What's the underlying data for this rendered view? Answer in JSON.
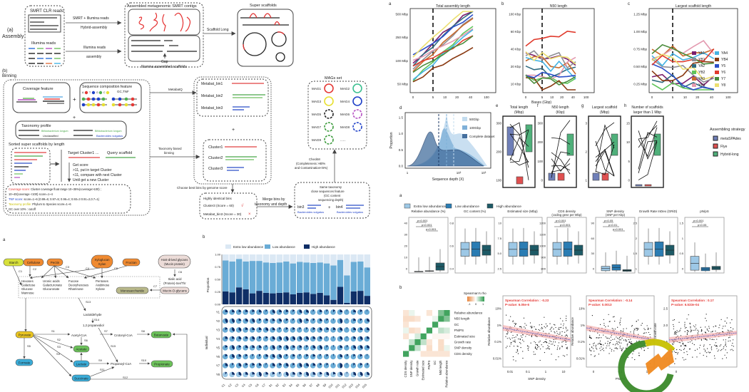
{
  "panel_assembly": {
    "label_a": "(a)",
    "label_assembly": "Assembly",
    "label_b": "(b)",
    "label_binning": "Binning",
    "smrt_box_title": "SMRT CLR reads",
    "illumina_box_title": "Illumina reads",
    "arrow_hybrid_top": "SMRT + Illumina reads",
    "arrow_hybrid_bottom": "Hybrid-assembly",
    "arrow_illumina_top": "Illumina  reads",
    "arrow_illumina_bottom": "assembly",
    "contigs_title": "Assembled metagenomic SMRT contigs",
    "gap_label": "Gap",
    "scaffolds_title": "Illumina assembled scaffolds",
    "scaffold_long": "Scaffold Long",
    "super_scaffolds": "Super scaffolds"
  },
  "panel_binning": {
    "coverage_feature": "Coverage feature",
    "sequence_feature": "Sequence composition feature",
    "gc_tnf": "GC,TNF",
    "plus": "+",
    "taxonomy_profile": "Taxonomy profile",
    "tax_items": [
      "Bifidobacterium longum",
      "Unclassified",
      "Bifidobacterium longum",
      "Bacteroides vulgatus"
    ],
    "sorted_title": "Sorted super scaffolds by length",
    "target_cluster": "Target Cluster1 ...",
    "query_scaffold": "Query scaffold",
    "steps": [
      "Get score",
      ">11, put in target Cluster",
      "<11, compare with next Cluster",
      "Until get a new Cluster"
    ],
    "score_lines": [
      {
        "key": "Coverage score:",
        "text": " Cluster coverage float range 10~35%(coverage>100) ;",
        "color": "#e53935"
      },
      {
        "key": "",
        "text": "10~40(coverage <100) score=1~4",
        "color": "#222"
      },
      {
        "key": "TNF score:",
        "text": "  score=1~6   (0.99=6; 0.97=5; 0.96=4; 0.93=3 0.91=2,0.7=1)",
        "color": "#1e40c8"
      },
      {
        "key": "Taxonomy profile:",
        "text": " Phylum to Species score=1~6",
        "color": "#c8c000"
      },
      {
        "key": "",
        "text": "GC over 10% : cutoff",
        "color": "#222"
      }
    ],
    "metabat_label": "MetabatQ",
    "taxonomy_binning": [
      "Taxonomy based",
      "binning"
    ],
    "metabat_bins": [
      "Metabat_bin1",
      "Metabat_bin2",
      "Metabat_bin3"
    ],
    "clusters": [
      "Cluster1",
      "Cluster2",
      "Cluster3"
    ],
    "choose_best": "Choose best bins by genome score",
    "highly_identical": "Highly identical bins",
    "cluster3_score": "Cluster3 (Score = 60)",
    "metabat3_score": "Metabat_bin3 (Score = 30)",
    "merge_label": [
      "Merge bins by",
      "taxonomy and depth"
    ],
    "same_tax": [
      "Same taxonomy",
      "close sequences feature",
      "(GC content",
      "sequencing depth)"
    ],
    "bin3": "bin3",
    "bin4": "bin4",
    "bacteroides": "Bacteroides vulgatus",
    "checkm": [
      "CheckM",
      "(Completeness >80%",
      "and Contamination<5%)"
    ],
    "mags_title": "MAGs set",
    "mags": [
      "MAG1",
      "MAG2",
      "MAG3",
      "MAG4",
      "MAG5",
      "MAG6",
      "MAG7",
      "MAG8",
      "MAG9",
      "......"
    ]
  },
  "panel_pathway": {
    "label": "a",
    "nodes": {
      "starch": "Starch",
      "cellulose": "Cellulose",
      "pectin": "Pectin",
      "xylo1": "Xyloglucan",
      "xylo2": "Xylan",
      "fructan": "Fructan",
      "host1": "Host-drived glycans",
      "host2": "(Mucin protein)",
      "sialic1": "Sialic acid",
      "sialic2": "(Protein)-Ser/Thr",
      "mucin": "Mucin-O-glycans",
      "mono": "Monosaccharide",
      "hexoses": [
        "Hexoses",
        "Galactose",
        "Glucose",
        "Mannose"
      ],
      "uronic": [
        "Uronic acids",
        "Galacturonate",
        "Glucuronate"
      ],
      "fucose": [
        "Fucose",
        "Deoxyhexoses",
        "Rhamnose"
      ],
      "pentoses": [
        "Pentoses",
        "Arabinose",
        "Xylose"
      ],
      "lactaldehyde": "Lactaldehyde",
      "propanediol": "1,2 propanediol",
      "pyruvate": "Pyruvate",
      "acetyl": "Acetyl-CoA",
      "crotonyl": "Crotonyl-CoA",
      "butanoate": "Butanoate",
      "acetate": "Acetate",
      "formate": "Formate",
      "lactate": "Lactate",
      "propanoyl": "Propanoyl-CoA",
      "propionate": "Propionate",
      "succinate": "Succinate"
    },
    "edges": [
      "C1",
      "C2",
      "C3",
      "C4",
      "C5",
      "C6",
      "C7",
      "S1",
      "S2",
      "S3",
      "S4",
      "S5",
      "S6",
      "S7",
      "S8",
      "S9",
      "S10",
      "S11",
      "S12",
      "S13",
      "S14",
      "S15"
    ]
  },
  "chart_data": [
    {
      "id": "b-abundance",
      "type": "bar",
      "title": "",
      "ylabel": "Proportion",
      "xlabel": "",
      "ylim": [
        0,
        1
      ],
      "yticks": [
        "0.00",
        "0.25",
        "0.50",
        "0.75",
        "1.00"
      ],
      "legend": [
        "Extra low abundance",
        "Low abundance",
        "High abundance"
      ],
      "legend_position": "top",
      "categories": [
        "C1",
        "C2",
        "C3",
        "C4",
        "C5",
        "C6",
        "C7",
        "S1",
        "S2",
        "S3",
        "S4",
        "S5",
        "S6",
        "S7",
        "S8",
        "S9",
        "S10",
        "S11",
        "S12",
        "S13",
        "S14",
        "S15"
      ],
      "series": [
        {
          "name": "High abundance",
          "values": [
            0.26,
            0.24,
            0.34,
            0.3,
            0.22,
            0.27,
            0.23,
            0.22,
            0.23,
            0.24,
            0.2,
            0.23,
            0.24,
            0.21,
            0.23,
            0.18,
            0.09,
            0.35,
            0.03,
            0.26,
            0.27,
            0.17
          ]
        },
        {
          "name": "Low abundance",
          "values": [
            0.62,
            0.62,
            0.57,
            0.56,
            0.65,
            0.6,
            0.61,
            0.61,
            0.61,
            0.62,
            0.62,
            0.62,
            0.6,
            0.62,
            0.61,
            0.64,
            0.69,
            0.54,
            0.55,
            0.59,
            0.59,
            0.57
          ]
        },
        {
          "name": "Extra low abundance",
          "values": [
            0.12,
            0.14,
            0.09,
            0.14,
            0.13,
            0.13,
            0.16,
            0.17,
            0.16,
            0.14,
            0.18,
            0.15,
            0.16,
            0.17,
            0.16,
            0.18,
            0.22,
            0.11,
            0.42,
            0.15,
            0.14,
            0.26
          ]
        }
      ],
      "pie_rows": [
        "Y1",
        "Y2",
        "Y3",
        "Y4",
        "Y5",
        "Y6",
        "Y7",
        "Y8"
      ],
      "pie_ylabel": "Individual"
    },
    {
      "id": "a-total-assembly",
      "type": "line",
      "title": "Total assembly length",
      "xlabel": "",
      "ylabel": "",
      "xticks": [
        "0",
        "5",
        "10",
        "20",
        "40",
        "100"
      ],
      "yticks": [
        "50 Mbp",
        "100 Mbp",
        "250 Mbp",
        "500 Mbp"
      ],
      "xlim": [
        0,
        120
      ],
      "vline": 5
    },
    {
      "id": "b-n50",
      "type": "line",
      "title": "N50 length",
      "xlabel": "Bases (Gbp)",
      "ylabel": "",
      "xticks": [
        "0",
        "5",
        "10",
        "20",
        "40",
        "100"
      ],
      "yticks": [
        "10 Kbp",
        "20 Kbp",
        "40 Kbp",
        "60 Kbp",
        "100 Kbp"
      ],
      "vline": 5
    },
    {
      "id": "c-largest-scaffold",
      "type": "line",
      "title": "Largest scaffold length",
      "xticks": [
        "0",
        "5",
        "10",
        "20",
        "40",
        "100"
      ],
      "yticks": [
        "0.25 Mbp",
        "0.50 Mbp",
        "0.75 Mbp",
        "1.00 Mbp",
        "1.25 Mbp"
      ],
      "vline": 5,
      "legend": [
        {
          "name": "YA1",
          "color": "#7b1f6e"
        },
        {
          "name": "YB1",
          "color": "#8e8e96"
        },
        {
          "name": "YA2",
          "color": "#2f6b80"
        },
        {
          "name": "YB2",
          "color": "#5fc45a"
        },
        {
          "name": "YA3",
          "color": "#c86a2c"
        },
        {
          "name": "YB3",
          "color": "#e39ab0"
        },
        {
          "name": "YA4",
          "color": "#46b3e3"
        },
        {
          "name": "YB4",
          "color": "#8a3a12"
        },
        {
          "name": "Y5",
          "color": "#2c4fc8"
        },
        {
          "name": "Y6",
          "color": "#e03a2c"
        },
        {
          "name": "Y7",
          "color": "#4a8c3c"
        },
        {
          "name": "Y8",
          "color": "#ecdf70"
        }
      ]
    },
    {
      "id": "d-depth",
      "type": "area",
      "title": "",
      "xlabel": "Sequence depth (X)",
      "ylabel": "Proportion",
      "xticks": [
        "1",
        "10²",
        "10³"
      ],
      "yticks": [
        "0.0",
        "0.5",
        "1.0",
        "1.5"
      ],
      "ylim": [
        0,
        1.5
      ],
      "legend": [
        "50Gbp",
        "100Gbp",
        "Complete dataset"
      ]
    },
    {
      "id": "e-h-strategy",
      "type": "box",
      "panels": [
        {
          "letter": "e",
          "title": [
            "Total length",
            "(Mbp)"
          ],
          "yticks": [
            "100",
            "200",
            "300"
          ]
        },
        {
          "letter": "f",
          "title": [
            "N50 length",
            "(Kbp)"
          ],
          "yticks": [
            "0",
            "100",
            "200",
            "300"
          ]
        },
        {
          "letter": "g",
          "title": [
            "Largest scaffold",
            "(Mbp)"
          ],
          "yticks": [
            "1",
            "2",
            "3"
          ]
        },
        {
          "letter": "h",
          "title": [
            "Number of scaffolds",
            "larger than 1 Mbp"
          ],
          "yticks": [
            "0",
            "5",
            "10",
            "15"
          ]
        }
      ],
      "legend_title": "Assembling strategy",
      "legend": [
        {
          "name": "metaSPAdes",
          "color": "#6f7fb8"
        },
        {
          "name": "Flye",
          "color": "#e05050"
        },
        {
          "name": "Hybrid-long",
          "color": "#4fb07a"
        }
      ]
    },
    {
      "id": "a-features",
      "type": "box",
      "legend": [
        "Extra low abundance",
        "Low abundance",
        "High abundance"
      ],
      "panels": [
        {
          "title": [
            "Relative abundance (%)"
          ],
          "yticks": [
            "0",
            "10",
            "20",
            "30",
            "40"
          ],
          "pvals": [
            "p<0.001",
            "p<0.001",
            "p<0.001"
          ]
        },
        {
          "title": [
            "GC content (%)"
          ],
          "yticks": [
            "0.4",
            "0.6",
            "0.8"
          ],
          "pvals": []
        },
        {
          "title": [
            "Estimated size (Mbp)"
          ],
          "yticks": [
            "2.5",
            "5.0",
            "7.5",
            "10"
          ],
          "pvals": []
        },
        {
          "title": [
            "CDS density",
            "(coding gene per Mbp)"
          ],
          "yticks": [
            "800",
            "900",
            "1000",
            "1100",
            "1200"
          ],
          "pvals": [
            "p<0.001",
            "p<0.001"
          ]
        },
        {
          "title": [
            "SNP density",
            "(SNP per Kbp)"
          ],
          "yticks": [
            "0",
            "30",
            "60",
            "90"
          ],
          "pvals": [
            "p<0.05",
            "p<0.01",
            "p<0.001"
          ]
        },
        {
          "title": [
            "Growth Rate InDex (GRiD)"
          ],
          "yticks": [
            "1",
            "1.5",
            "2",
            "2.5"
          ],
          "pvals": []
        },
        {
          "title": [
            "pN/pS"
          ],
          "yticks": [
            "0",
            "0.5",
            "1",
            "1.5"
          ],
          "pvals": [
            "p<0.001",
            "p<0.05"
          ]
        }
      ]
    },
    {
      "id": "b-correlation",
      "type": "heatmap",
      "legend_title": "Spearman's rho",
      "legend_ticks": [
        "-1",
        "0",
        "1"
      ],
      "rows": [
        "Relative abundance",
        "N50 length",
        "GC",
        "PN/PS",
        "Estimated size",
        "Growth rate",
        "SNP density",
        "CDS density"
      ],
      "cols": [
        "CDS density",
        "SNP density",
        "Growth rate",
        "Estimated size",
        "PN/PS",
        "GC",
        "N50 length",
        "Relative abundance"
      ]
    },
    {
      "id": "b-scatter",
      "type": "scatter",
      "panels": [
        {
          "xlabel": "SNP density",
          "ylabel": "Relative abundance",
          "xticks": [
            "0.01",
            "0.1",
            "1",
            "10"
          ],
          "yticks": [
            "0.01%",
            "0.1%",
            "1%",
            "10%"
          ],
          "stat1": "Spearman Correlation : -0.23",
          "stat2": "P-value: 6.05e-6"
        },
        {
          "xlabel": "PN/PS",
          "ylabel": "Relative abundance",
          "xticks": [
            "0",
            "0.1",
            "1"
          ],
          "yticks": [
            "0.01%",
            "0.1%",
            "1%",
            "10%"
          ],
          "stat1": "Spearman Correlation : -0.14",
          "stat2": "P-value: 0.0013"
        },
        {
          "xlabel": "",
          "ylabel": "Growth rate",
          "xticks": [
            "0"
          ],
          "yticks": [
            "1.0",
            "1.5",
            "2.0",
            "2.5"
          ],
          "stat1": "Spearman Correlation : 0.17",
          "stat2": "P-value: 6.533e-04"
        }
      ]
    }
  ],
  "labels_right": {
    "a": "a",
    "b": "b",
    "c": "c",
    "d": "d",
    "e": "e",
    "f": "f",
    "g": "g",
    "h": "h",
    "section_a2": "a",
    "section_b2": "b"
  }
}
